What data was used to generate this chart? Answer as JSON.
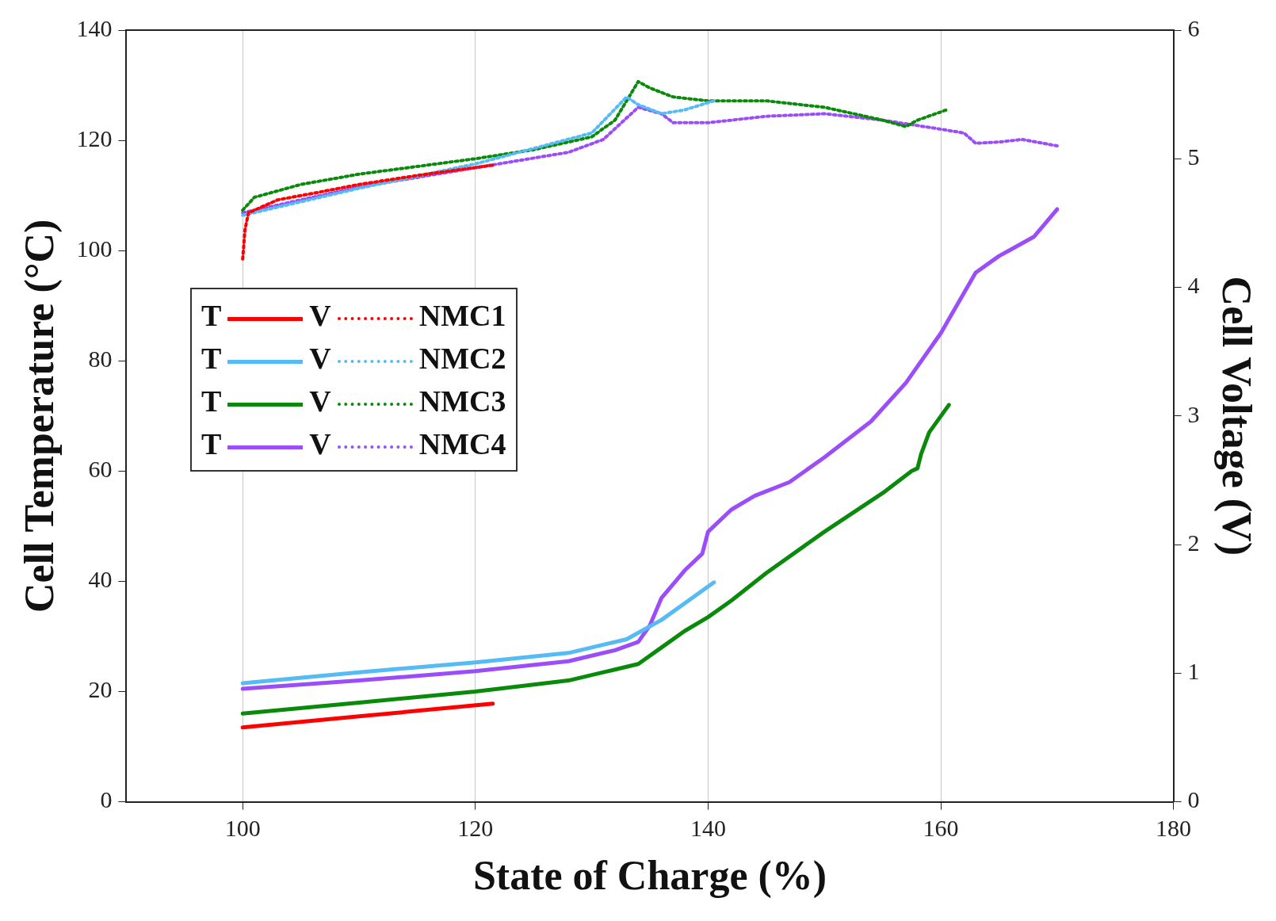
{
  "chart_data": {
    "type": "line",
    "xlabel": "State of Charge (%)",
    "ylabel": "Cell Temperature (°C)",
    "y2label": "Cell Voltage (V)",
    "xlim": [
      90,
      180
    ],
    "xticks": [
      100,
      120,
      140,
      160,
      180
    ],
    "ylim": [
      0,
      140
    ],
    "yticks": [
      0,
      20,
      40,
      60,
      80,
      100,
      120,
      140
    ],
    "y2lim": [
      0,
      6
    ],
    "y2ticks": [
      0,
      1,
      2,
      3,
      4,
      5,
      6
    ],
    "grid": "x",
    "legend": "left",
    "annotations": [
      "T",
      "V"
    ],
    "series": [
      {
        "color": "#ff0000",
        "line_style": "solid",
        "x": [
          100,
          110,
          121.5
        ],
        "values": [
          13.5,
          15.5,
          17.8
        ]
      },
      {
        "color": "#55bbf5",
        "line_style": "solid",
        "x": [
          100,
          110,
          120,
          128,
          133,
          136,
          140.5
        ],
        "values": [
          21.5,
          23.5,
          25.3,
          27,
          29.5,
          33,
          39.8
        ]
      },
      {
        "color": "#0a8a0a",
        "line_style": "solid",
        "x": [
          100,
          110,
          120,
          128,
          132,
          134,
          136,
          138,
          140,
          142,
          145,
          150,
          155,
          157.5,
          158,
          158.3,
          159,
          160.7
        ],
        "values": [
          16,
          18,
          20,
          22,
          24,
          25,
          28,
          31,
          33.5,
          36.5,
          41.5,
          49,
          56,
          60,
          60.5,
          63,
          67,
          72
        ]
      },
      {
        "color": "#9b4dfa",
        "line_style": "solid",
        "x": [
          100,
          110,
          120,
          128,
          132,
          134,
          135,
          136,
          138,
          139.5,
          140,
          142,
          144,
          147,
          150,
          154,
          157,
          160,
          163,
          165,
          168,
          170
        ],
        "values": [
          20.5,
          22,
          23.7,
          25.5,
          27.5,
          29,
          32,
          37,
          42,
          45,
          49,
          53,
          55.5,
          58,
          62.5,
          69,
          76,
          85,
          96,
          99,
          102.5,
          107.5
        ]
      },
      {
        "name": "NMC1",
        "color": "#ff0000",
        "line_style": "dotted",
        "axis": "y2",
        "x": [
          100,
          100.2,
          100.5,
          103,
          106,
          110,
          115,
          121.5
        ],
        "values": [
          4.22,
          4.45,
          4.58,
          4.68,
          4.73,
          4.8,
          4.87,
          4.95
        ]
      },
      {
        "name": "NMC2",
        "color": "#55bbf5",
        "line_style": "dotted",
        "axis": "y2",
        "x": [
          100,
          110,
          120,
          130,
          133,
          134,
          136,
          138,
          140.5
        ],
        "values": [
          4.56,
          4.77,
          4.96,
          5.2,
          5.48,
          5.42,
          5.35,
          5.38,
          5.45
        ]
      },
      {
        "name": "NMC3",
        "color": "#0a8a0a",
        "line_style": "dotted",
        "axis": "y2",
        "x": [
          100,
          101,
          105,
          110,
          120,
          125,
          130,
          132,
          134,
          135,
          137,
          140,
          145,
          150,
          155,
          157,
          158,
          160.5
        ],
        "values": [
          4.6,
          4.7,
          4.8,
          4.88,
          5,
          5.07,
          5.17,
          5.3,
          5.6,
          5.55,
          5.48,
          5.45,
          5.45,
          5.4,
          5.3,
          5.25,
          5.3,
          5.38
        ]
      },
      {
        "name": "NMC4",
        "color": "#9b4dfa",
        "line_style": "dotted",
        "axis": "y2",
        "x": [
          100,
          110,
          120,
          128,
          131,
          134,
          136,
          137,
          140,
          145,
          150,
          155,
          160,
          162,
          163,
          165,
          167,
          170
        ],
        "values": [
          4.58,
          4.78,
          4.93,
          5.05,
          5.15,
          5.4,
          5.35,
          5.28,
          5.28,
          5.33,
          5.35,
          5.3,
          5.23,
          5.2,
          5.12,
          5.13,
          5.15,
          5.1
        ]
      }
    ]
  }
}
